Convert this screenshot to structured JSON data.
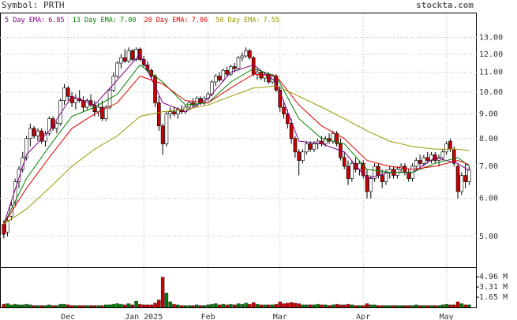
{
  "chart_data": {
    "type": "candlestick",
    "symbol_label": "Symbol: PRTH",
    "site": "stockta.com",
    "log_scale": true,
    "grid": true,
    "ylim": [
      4.31,
      14.6
    ],
    "yticks": [
      {
        "value": 5,
        "label": "5.00"
      },
      {
        "value": 6,
        "label": "6.00"
      },
      {
        "value": 7,
        "label": "7.00"
      },
      {
        "value": 8,
        "label": "8.00"
      },
      {
        "value": 9,
        "label": "9.00"
      },
      {
        "value": 10,
        "label": "10.00"
      },
      {
        "value": 11,
        "label": "11.00"
      },
      {
        "value": 12,
        "label": "12.00"
      },
      {
        "value": 13,
        "label": "13.00"
      }
    ],
    "xlim": [
      -1,
      125
    ],
    "xticks": [
      {
        "value": 17,
        "label": "Dec"
      },
      {
        "value": 37,
        "label": "Jan 2025"
      },
      {
        "value": 54,
        "label": "Feb"
      },
      {
        "value": 73,
        "label": "Mar"
      },
      {
        "value": 95,
        "label": "Apr"
      },
      {
        "value": 117,
        "label": "May"
      }
    ],
    "up_color": "#ffffff",
    "down_color": "#cc0000",
    "candles": [
      [
        5.3,
        5.4,
        4.95,
        5.05
      ],
      [
        5.1,
        5.5,
        5.0,
        5.4
      ],
      [
        5.5,
        5.9,
        5.4,
        5.8
      ],
      [
        5.9,
        6.6,
        5.8,
        6.5
      ],
      [
        6.5,
        7.0,
        6.3,
        6.9
      ],
      [
        6.9,
        7.5,
        6.8,
        7.3
      ],
      [
        7.3,
        8.1,
        7.2,
        8.0
      ],
      [
        8.0,
        8.6,
        7.7,
        8.4
      ],
      [
        8.4,
        8.5,
        8.0,
        8.1
      ],
      [
        8.1,
        8.4,
        7.9,
        8.3
      ],
      [
        8.3,
        8.4,
        7.8,
        7.9
      ],
      [
        7.9,
        8.3,
        7.7,
        8.2
      ],
      [
        8.2,
        8.9,
        8.1,
        8.8
      ],
      [
        8.8,
        8.9,
        8.3,
        8.4
      ],
      [
        8.4,
        8.7,
        8.2,
        8.6
      ],
      [
        8.6,
        9.7,
        8.5,
        9.6
      ],
      [
        9.6,
        10.4,
        9.4,
        10.2
      ],
      [
        10.2,
        10.3,
        9.6,
        9.8
      ],
      [
        9.8,
        10.0,
        9.3,
        9.5
      ],
      [
        9.5,
        9.9,
        9.2,
        9.7
      ],
      [
        9.7,
        10.1,
        9.5,
        9.6
      ],
      [
        9.6,
        9.8,
        9.1,
        9.3
      ],
      [
        9.3,
        9.7,
        9.2,
        9.6
      ],
      [
        9.6,
        9.9,
        9.3,
        9.4
      ],
      [
        9.4,
        9.6,
        8.9,
        9.1
      ],
      [
        9.1,
        9.5,
        8.9,
        9.3
      ],
      [
        9.3,
        9.6,
        8.7,
        8.8
      ],
      [
        8.8,
        9.4,
        8.7,
        9.3
      ],
      [
        9.3,
        10.2,
        9.2,
        10.1
      ],
      [
        10.1,
        11.0,
        10.0,
        10.8
      ],
      [
        10.8,
        11.6,
        10.7,
        11.5
      ],
      [
        11.5,
        12.0,
        11.2,
        11.8
      ],
      [
        11.8,
        12.3,
        11.5,
        11.6
      ],
      [
        11.6,
        12.4,
        11.5,
        12.2
      ],
      [
        12.2,
        12.3,
        11.6,
        11.7
      ],
      [
        11.7,
        12.4,
        11.6,
        12.3
      ],
      [
        12.3,
        12.4,
        11.6,
        11.7
      ],
      [
        11.7,
        11.9,
        11.3,
        11.4
      ],
      [
        11.4,
        11.6,
        11.0,
        11.1
      ],
      [
        11.1,
        11.2,
        10.6,
        10.8
      ],
      [
        10.8,
        10.9,
        9.3,
        9.5
      ],
      [
        9.5,
        9.8,
        8.3,
        8.5
      ],
      [
        8.5,
        8.6,
        7.4,
        7.8
      ],
      [
        7.8,
        9.1,
        7.7,
        9.0
      ],
      [
        9.0,
        9.3,
        8.8,
        9.1
      ],
      [
        9.1,
        9.3,
        8.9,
        9.0
      ],
      [
        9.0,
        9.3,
        8.8,
        9.2
      ],
      [
        9.2,
        9.4,
        9.0,
        9.1
      ],
      [
        9.1,
        9.4,
        9.0,
        9.3
      ],
      [
        9.3,
        9.6,
        9.2,
        9.5
      ],
      [
        9.5,
        9.7,
        9.3,
        9.4
      ],
      [
        9.4,
        9.8,
        9.3,
        9.7
      ],
      [
        9.7,
        9.8,
        9.4,
        9.5
      ],
      [
        9.5,
        9.8,
        9.4,
        9.7
      ],
      [
        9.7,
        10.0,
        9.6,
        9.9
      ],
      [
        9.9,
        10.6,
        9.8,
        10.5
      ],
      [
        10.5,
        10.9,
        10.3,
        10.8
      ],
      [
        10.8,
        11.0,
        10.5,
        10.6
      ],
      [
        10.6,
        11.2,
        10.5,
        11.1
      ],
      [
        11.1,
        11.3,
        10.8,
        10.9
      ],
      [
        10.9,
        11.4,
        10.8,
        11.3
      ],
      [
        11.3,
        11.5,
        11.0,
        11.2
      ],
      [
        11.2,
        11.9,
        11.1,
        11.8
      ],
      [
        11.8,
        12.1,
        11.6,
        11.9
      ],
      [
        11.9,
        12.4,
        11.8,
        12.2
      ],
      [
        12.2,
        12.3,
        11.7,
        11.8
      ],
      [
        11.8,
        11.9,
        10.8,
        10.9
      ],
      [
        10.9,
        11.2,
        10.6,
        11.0
      ],
      [
        11.0,
        11.1,
        10.6,
        10.7
      ],
      [
        10.7,
        11.0,
        10.5,
        10.9
      ],
      [
        10.9,
        11.0,
        10.4,
        10.5
      ],
      [
        10.5,
        10.9,
        10.4,
        10.8
      ],
      [
        10.8,
        10.9,
        10.0,
        10.1
      ],
      [
        10.1,
        10.3,
        9.1,
        9.3
      ],
      [
        9.3,
        9.6,
        8.8,
        9.0
      ],
      [
        9.0,
        9.2,
        8.4,
        8.6
      ],
      [
        8.6,
        8.8,
        7.8,
        8.0
      ],
      [
        8.0,
        8.1,
        7.3,
        7.5
      ],
      [
        7.5,
        7.6,
        6.7,
        7.2
      ],
      [
        7.2,
        7.6,
        7.1,
        7.5
      ],
      [
        7.5,
        7.9,
        7.4,
        7.8
      ],
      [
        7.8,
        7.9,
        7.5,
        7.6
      ],
      [
        7.6,
        7.9,
        7.5,
        7.8
      ],
      [
        7.8,
        8.0,
        7.6,
        7.9
      ],
      [
        7.9,
        8.1,
        7.7,
        7.8
      ],
      [
        7.8,
        8.1,
        7.7,
        8.0
      ],
      [
        8.0,
        8.2,
        7.8,
        7.9
      ],
      [
        7.9,
        8.3,
        7.8,
        8.2
      ],
      [
        8.2,
        8.3,
        7.7,
        7.8
      ],
      [
        7.8,
        8.0,
        7.2,
        7.3
      ],
      [
        7.3,
        7.5,
        6.9,
        7.0
      ],
      [
        7.0,
        7.2,
        6.4,
        6.6
      ],
      [
        6.6,
        7.2,
        6.5,
        7.1
      ],
      [
        7.1,
        7.3,
        6.8,
        6.9
      ],
      [
        6.9,
        7.2,
        6.7,
        7.1
      ],
      [
        7.1,
        7.2,
        6.6,
        6.7
      ],
      [
        6.7,
        6.9,
        6.0,
        6.2
      ],
      [
        6.2,
        6.7,
        6.0,
        6.6
      ],
      [
        6.6,
        7.1,
        6.5,
        7.0
      ],
      [
        7.0,
        7.1,
        6.6,
        6.7
      ],
      [
        6.7,
        6.9,
        6.3,
        6.5
      ],
      [
        6.5,
        6.9,
        6.4,
        6.8
      ],
      [
        6.8,
        7.0,
        6.6,
        6.9
      ],
      [
        6.9,
        7.0,
        6.6,
        6.7
      ],
      [
        6.7,
        7.0,
        6.6,
        6.9
      ],
      [
        6.9,
        7.1,
        6.8,
        7.0
      ],
      [
        7.0,
        7.1,
        6.7,
        6.8
      ],
      [
        6.8,
        6.9,
        6.5,
        6.6
      ],
      [
        6.6,
        7.1,
        6.5,
        7.0
      ],
      [
        7.0,
        7.3,
        6.9,
        7.2
      ],
      [
        7.2,
        7.4,
        7.0,
        7.1
      ],
      [
        7.1,
        7.4,
        7.0,
        7.3
      ],
      [
        7.3,
        7.5,
        7.1,
        7.2
      ],
      [
        7.2,
        7.5,
        7.1,
        7.4
      ],
      [
        7.4,
        7.5,
        7.1,
        7.2
      ],
      [
        7.2,
        7.4,
        7.0,
        7.3
      ],
      [
        7.3,
        7.6,
        7.2,
        7.5
      ],
      [
        7.5,
        7.9,
        7.4,
        7.8
      ],
      [
        7.9,
        8.0,
        7.5,
        7.6
      ],
      [
        7.6,
        7.7,
        7.0,
        7.1
      ],
      [
        7.0,
        7.1,
        6.0,
        6.2
      ],
      [
        6.2,
        6.8,
        6.1,
        6.7
      ],
      [
        6.7,
        7.1,
        6.3,
        6.5
      ],
      [
        6.5,
        7.0,
        6.4,
        6.9
      ]
    ],
    "volume": [
      0.5,
      0.6,
      0.4,
      0.5,
      0.4,
      0.4,
      0.5,
      0.4,
      0.3,
      0.3,
      0.3,
      0.3,
      0.4,
      0.3,
      0.3,
      0.5,
      0.5,
      0.4,
      0.3,
      0.3,
      0.3,
      0.3,
      0.3,
      0.3,
      0.3,
      0.3,
      0.3,
      0.4,
      0.4,
      0.5,
      0.6,
      0.5,
      0.4,
      0.6,
      0.4,
      1.0,
      0.5,
      0.4,
      0.4,
      0.4,
      0.7,
      1.2,
      4.9,
      2.3,
      0.9,
      0.5,
      0.4,
      0.3,
      0.3,
      0.3,
      0.3,
      0.4,
      0.3,
      0.3,
      0.4,
      0.5,
      0.6,
      0.4,
      0.5,
      0.4,
      0.5,
      0.4,
      0.6,
      0.5,
      0.7,
      0.5,
      0.8,
      0.5,
      0.4,
      0.4,
      0.4,
      0.4,
      0.5,
      0.9,
      0.6,
      0.7,
      0.8,
      0.7,
      0.6,
      0.4,
      0.4,
      0.4,
      0.4,
      0.5,
      0.4,
      0.4,
      0.3,
      0.4,
      0.5,
      0.4,
      0.4,
      0.5,
      0.4,
      0.3,
      0.3,
      0.3,
      0.6,
      0.4,
      0.4,
      0.3,
      0.3,
      0.3,
      0.3,
      0.3,
      0.3,
      0.3,
      0.3,
      0.3,
      0.3,
      0.4,
      0.3,
      0.3,
      0.3,
      0.3,
      0.3,
      0.3,
      0.4,
      0.5,
      0.4,
      0.4,
      0.9,
      0.6,
      0.4,
      0.4
    ],
    "vlim": [
      0,
      6.26
    ],
    "vticks": [
      {
        "value": 1.65,
        "label": "1.65 M"
      },
      {
        "value": 3.31,
        "label": "3.31 M"
      },
      {
        "value": 4.96,
        "label": "4.96 M"
      }
    ],
    "volume_up_color": "#008000",
    "volume_down_color": "#cc0000",
    "ema_x": [
      0,
      6,
      12,
      18,
      24,
      30,
      36,
      42,
      48,
      54,
      60,
      66,
      72,
      78,
      84,
      90,
      96,
      102,
      108,
      114,
      120,
      123
    ],
    "series": [
      {
        "name": "5 Day EMA:",
        "last_value": 6.85,
        "color": "#800080",
        "values": [
          5.3,
          7.4,
          8.3,
          9.8,
          9.4,
          10.6,
          12.0,
          9.5,
          9.1,
          9.7,
          11.0,
          11.4,
          10.5,
          7.9,
          7.8,
          7.5,
          6.6,
          6.8,
          6.8,
          7.3,
          7.1,
          6.85
        ]
      },
      {
        "name": "13 Day EMA:",
        "last_value": 7.0,
        "color": "#008000",
        "values": [
          5.3,
          6.6,
          7.7,
          8.9,
          9.3,
          9.9,
          11.4,
          10.5,
          9.4,
          9.5,
          10.5,
          11.2,
          10.8,
          8.8,
          8.0,
          7.8,
          6.9,
          6.8,
          6.8,
          7.1,
          7.3,
          7.0
        ]
      },
      {
        "name": "20 Day EMA:",
        "last_value": 7.06,
        "color": "#dd0000",
        "values": [
          5.3,
          6.3,
          7.3,
          8.4,
          9.0,
          9.5,
          10.8,
          10.4,
          9.6,
          9.5,
          10.2,
          10.9,
          10.8,
          9.4,
          8.5,
          8.0,
          7.2,
          7.0,
          6.9,
          7.0,
          7.2,
          7.06
        ]
      },
      {
        "name": "50 Day EMA:",
        "last_value": 7.55,
        "color": "#999900",
        "values": [
          5.3,
          5.7,
          6.3,
          7.0,
          7.6,
          8.1,
          8.9,
          9.1,
          9.2,
          9.4,
          9.8,
          10.2,
          10.3,
          9.8,
          9.3,
          8.8,
          8.3,
          7.9,
          7.7,
          7.6,
          7.6,
          7.55
        ]
      }
    ]
  }
}
